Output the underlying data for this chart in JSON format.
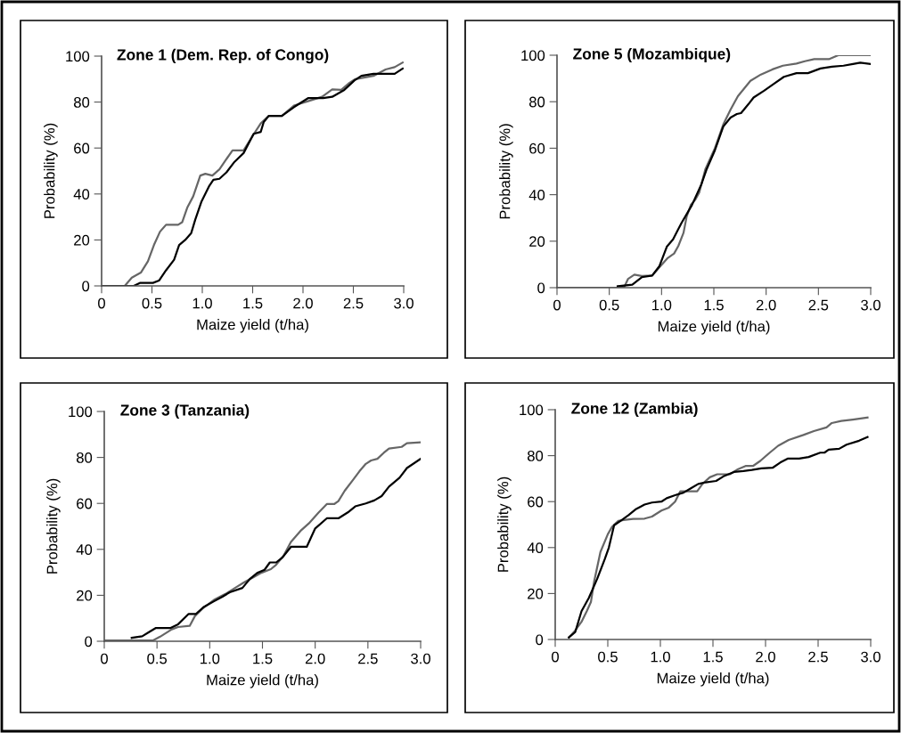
{
  "chart_data": [
    {
      "type": "line",
      "title": "Zone 1 (Dem. Rep. of Congo)",
      "xlabel": "Maize yield (t/ha)",
      "ylabel": "Probability (%)",
      "xlim": [
        0,
        3.0
      ],
      "ylim": [
        0,
        100
      ],
      "xticks": [
        0,
        0.5,
        {
          "value": 1,
          "label": "1.0"
        },
        1.5,
        {
          "value": 2,
          "label": "2.0"
        },
        2.5,
        {
          "value": 3,
          "label": "3.0"
        }
      ],
      "yticks": [
        0,
        20,
        40,
        60,
        80,
        100
      ],
      "grid": false,
      "marker": "none",
      "line_style": "solid",
      "series": [
        {
          "color": "#666666",
          "x": [
            0,
            0.23,
            0.3,
            0.39,
            0.46,
            0.52,
            0.58,
            0.64,
            0.76,
            0.8,
            0.85,
            0.91,
            0.98,
            1.03,
            1.1,
            1.17,
            1.23,
            1.3,
            1.41,
            1.51,
            1.58,
            1.66,
            1.79,
            1.91,
            2.05,
            2.19,
            2.29,
            2.38,
            2.45,
            2.52,
            2.7,
            2.82,
            2.91,
            2.99
          ],
          "values": [
            0,
            0,
            3.6,
            5.8,
            10.7,
            17.8,
            23.6,
            26.6,
            26.6,
            27.7,
            34,
            39,
            48,
            48.8,
            48,
            50.7,
            54.6,
            59,
            59,
            66,
            70.7,
            74,
            74,
            78.5,
            80.4,
            82.3,
            85.5,
            85.3,
            88,
            90,
            91.4,
            94.2,
            95.2,
            97.2
          ]
        },
        {
          "color": "#000000",
          "x": [
            0,
            0.32,
            0.38,
            0.51,
            0.57,
            0.64,
            0.72,
            0.77,
            0.83,
            0.89,
            0.93,
            0.99,
            1.07,
            1.11,
            1.17,
            1.24,
            1.32,
            1.41,
            1.51,
            1.58,
            1.61,
            1.66,
            1.79,
            1.91,
            2.05,
            2.2,
            2.29,
            2.41,
            2.51,
            2.58,
            2.7,
            2.91,
            2.99
          ],
          "values": [
            0,
            0,
            1.3,
            1.3,
            2.3,
            6.8,
            11.4,
            17.8,
            20,
            23,
            28.8,
            36.5,
            43.6,
            46.2,
            46.6,
            49.4,
            54,
            57.8,
            66.2,
            67,
            71.3,
            74,
            74,
            77.8,
            81.7,
            81.7,
            82.3,
            85.3,
            89.4,
            91.4,
            92.3,
            92.3,
            94.6
          ]
        }
      ]
    },
    {
      "type": "line",
      "title": "Zone 5 (Mozambique)",
      "xlabel": "Maize yield (t/ha)",
      "ylabel": "Probability (%)",
      "xlim": [
        0,
        3.0
      ],
      "ylim": [
        0,
        100
      ],
      "xticks": [
        0,
        0.5,
        {
          "value": 1,
          "label": "1.0"
        },
        1.5,
        {
          "value": 2,
          "label": "2.0"
        },
        2.5,
        {
          "value": 3,
          "label": "3.0"
        }
      ],
      "yticks": [
        0,
        20,
        40,
        60,
        80,
        100
      ],
      "grid": false,
      "marker": "none",
      "line_style": "solid",
      "series": [
        {
          "color": "#666666",
          "x": [
            0,
            0.64,
            0.68,
            0.74,
            0.81,
            0.91,
            0.98,
            1.06,
            1.12,
            1.16,
            1.21,
            1.24,
            1.28,
            1.32,
            1.36,
            1.42,
            1.51,
            1.59,
            1.66,
            1.73,
            1.85,
            1.95,
            2.06,
            2.16,
            2.29,
            2.37,
            2.46,
            2.6,
            2.69,
            3.0
          ],
          "values": [
            0,
            0,
            3.8,
            5.6,
            5,
            5.2,
            8.8,
            12.8,
            14.7,
            17.9,
            23.6,
            30.6,
            35.6,
            37.7,
            40.9,
            51.1,
            60,
            70.2,
            76.6,
            82.4,
            89,
            91.7,
            93.9,
            95.5,
            96.4,
            97.4,
            98.3,
            98.3,
            100,
            100
          ]
        },
        {
          "color": "#000000",
          "x": [
            0.58,
            0.72,
            0.81,
            0.91,
            0.98,
            1.05,
            1.11,
            1.19,
            1.29,
            1.38,
            1.43,
            1.51,
            1.59,
            1.66,
            1.72,
            1.76,
            1.83,
            1.88,
            1.98,
            2.08,
            2.17,
            2.29,
            2.4,
            2.52,
            2.63,
            2.74,
            2.83,
            2.9,
            3.0
          ],
          "values": [
            0.6,
            1.3,
            4.5,
            5.2,
            9.3,
            17.6,
            20.8,
            27.8,
            35.5,
            44.4,
            50.8,
            59.1,
            69.3,
            73.2,
            74.7,
            75.1,
            78.9,
            81.8,
            84.7,
            87.9,
            90.7,
            92.3,
            92.3,
            94.3,
            95.1,
            95.5,
            96.2,
            96.8,
            96.2
          ]
        }
      ]
    },
    {
      "type": "line",
      "title": "Zone 3 (Tanzania)",
      "xlabel": "Maize yield (t/ha)",
      "ylabel": "Probability (%)",
      "xlim": [
        0,
        3.0
      ],
      "ylim": [
        0,
        100
      ],
      "xticks": [
        0,
        0.5,
        {
          "value": 1,
          "label": "1.0"
        },
        1.5,
        {
          "value": 2,
          "label": "2.0"
        },
        2.5,
        {
          "value": 3,
          "label": "3.0"
        }
      ],
      "yticks": [
        0,
        20,
        40,
        60,
        80,
        100
      ],
      "grid": false,
      "marker": "none",
      "line_style": "solid",
      "series": [
        {
          "color": "#666666",
          "x": [
            0,
            0.46,
            0.53,
            0.64,
            0.7,
            0.81,
            0.86,
            0.93,
            1.04,
            1.15,
            1.24,
            1.32,
            1.42,
            1.49,
            1.58,
            1.63,
            1.7,
            1.77,
            1.86,
            1.94,
            2.03,
            2.11,
            2.18,
            2.22,
            2.28,
            2.36,
            2.42,
            2.48,
            2.53,
            2.59,
            2.65,
            2.7,
            2.82,
            2.87,
            3.0
          ],
          "values": [
            0.3,
            0.3,
            2,
            5.2,
            6.2,
            6.7,
            11,
            14.2,
            18,
            20.6,
            23.2,
            25.5,
            28,
            29.8,
            31.4,
            33.3,
            37.2,
            43.2,
            48,
            51.3,
            55.9,
            59.7,
            59.7,
            61,
            65.5,
            70.3,
            74,
            77.2,
            78.7,
            79.4,
            82,
            83.9,
            84.6,
            86.2,
            86.6
          ]
        },
        {
          "color": "#000000",
          "x": [
            0.26,
            0.36,
            0.42,
            0.49,
            0.63,
            0.7,
            0.8,
            0.87,
            0.94,
            1.04,
            1.12,
            1.19,
            1.31,
            1.38,
            1.45,
            1.52,
            1.57,
            1.63,
            1.69,
            1.77,
            1.92,
            2.0,
            2.11,
            2.22,
            2.31,
            2.38,
            2.48,
            2.56,
            2.63,
            2.7,
            2.8,
            2.87,
            3.0
          ],
          "values": [
            1.5,
            2.2,
            3.9,
            5.8,
            5.8,
            7.4,
            11.9,
            11.9,
            14.8,
            17.4,
            19.4,
            21.3,
            23.2,
            27.1,
            29.7,
            31.1,
            34.3,
            34.3,
            36.5,
            41.1,
            41.1,
            49.1,
            53.5,
            53.5,
            56.1,
            58.7,
            60,
            61.3,
            63.2,
            67.3,
            71.2,
            75.4,
            79.4
          ]
        }
      ]
    },
    {
      "type": "line",
      "title": "Zone 12 (Zambia)",
      "xlabel": "Maize yield (t/ha)",
      "ylabel": "Probability (%)",
      "xlim": [
        0,
        3.0
      ],
      "ylim": [
        0,
        100
      ],
      "xticks": [
        0,
        0.5,
        {
          "value": 1,
          "label": "1.0"
        },
        1.5,
        {
          "value": 2,
          "label": "2.0"
        },
        2.5,
        {
          "value": 3,
          "label": "3.0"
        }
      ],
      "yticks": [
        0,
        20,
        40,
        60,
        80,
        100
      ],
      "grid": false,
      "marker": "none",
      "line_style": "solid",
      "series": [
        {
          "color": "#666666",
          "x": [
            0.13,
            0.19,
            0.25,
            0.3,
            0.34,
            0.37,
            0.43,
            0.5,
            0.54,
            0.6,
            0.65,
            0.74,
            0.85,
            0.92,
            1.01,
            1.08,
            1.14,
            1.19,
            1.26,
            1.35,
            1.4,
            1.47,
            1.54,
            1.66,
            1.73,
            1.81,
            1.88,
            1.95,
            2.04,
            2.12,
            2.22,
            2.36,
            2.46,
            2.58,
            2.63,
            2.72,
            2.83,
            2.97
          ],
          "values": [
            0.9,
            3.9,
            7.7,
            12.3,
            16.4,
            25.2,
            38.1,
            45.8,
            49,
            51.6,
            52,
            52.5,
            52.6,
            53.5,
            56.1,
            57.4,
            60,
            64.5,
            64.5,
            64.5,
            67.7,
            70.6,
            71.9,
            71.9,
            73.9,
            75.5,
            75.5,
            77.7,
            81.3,
            84.3,
            86.8,
            89,
            90.7,
            92.3,
            94.2,
            95.1,
            95.7,
            96.6
          ]
        },
        {
          "color": "#000000",
          "x": [
            0.13,
            0.19,
            0.25,
            0.32,
            0.4,
            0.47,
            0.51,
            0.56,
            0.63,
            0.7,
            0.77,
            0.85,
            0.92,
            1.01,
            1.06,
            1.14,
            1.22,
            1.29,
            1.36,
            1.43,
            1.53,
            1.6,
            1.7,
            1.79,
            1.87,
            1.96,
            2.07,
            2.14,
            2.21,
            2.32,
            2.41,
            2.52,
            2.56,
            2.6,
            2.7,
            2.77,
            2.89,
            2.97
          ],
          "values": [
            0.9,
            3.2,
            12.3,
            18.1,
            26.5,
            34.8,
            40,
            49.7,
            51.9,
            54.2,
            56.8,
            58.7,
            59.6,
            60,
            61.5,
            62.8,
            63.9,
            65.8,
            67.7,
            68.4,
            69,
            71,
            72.9,
            73.3,
            73.8,
            74.5,
            74.8,
            77,
            78.7,
            78.7,
            79.4,
            81.3,
            81.3,
            82.6,
            83,
            84.8,
            86.5,
            88.1
          ]
        }
      ]
    }
  ]
}
